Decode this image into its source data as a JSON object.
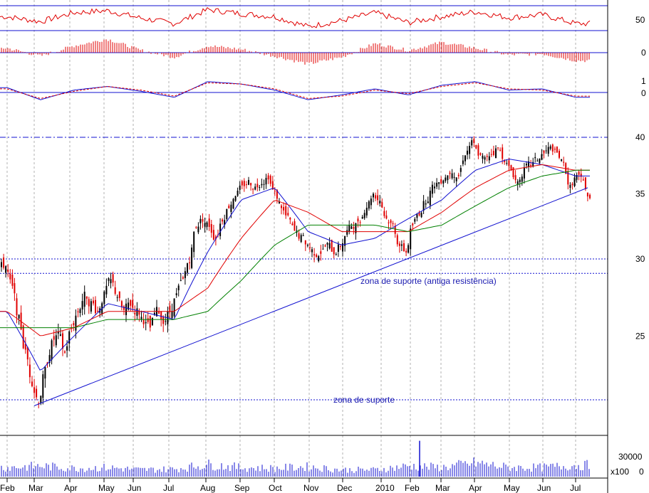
{
  "colors": {
    "background": "#ffffff",
    "up_candle": "#000000",
    "down_candle": "#e00000",
    "ma_fast": "#1010d0",
    "ma_mid": "#e00000",
    "ma_slow": "#008000",
    "guide_line": "#1010d0",
    "volume_bar": "#1010d0",
    "grid": "#b0b0b0"
  },
  "chart_data": [
    {
      "type": "line",
      "panel": "oscillator-1",
      "y_tick_labels": [
        "50"
      ],
      "reference_lines": [
        50
      ],
      "series": [
        {
          "color": "#e00000",
          "x": [
            "Feb",
            "Mar",
            "Apr",
            "May",
            "Jun",
            "Jul",
            "Aug",
            "Sep",
            "Oct",
            "Nov",
            "Dec",
            "2010",
            "Feb",
            "Mar",
            "Apr",
            "May",
            "Jun",
            "Jul"
          ],
          "values": [
            58,
            48,
            66,
            70,
            55,
            44,
            72,
            64,
            58,
            38,
            50,
            66,
            46,
            58,
            68,
            56,
            62,
            44
          ]
        }
      ]
    },
    {
      "type": "bar",
      "panel": "histogram",
      "y_tick_labels": [
        "0"
      ],
      "categories": [
        "Feb",
        "Mar",
        "Apr",
        "May",
        "Jun",
        "Jul",
        "Aug",
        "Sep",
        "Oct",
        "Nov",
        "Dec",
        "2010",
        "Feb",
        "Mar",
        "Apr",
        "May",
        "Jun",
        "Jul"
      ],
      "values": [
        4,
        -3,
        6,
        12,
        2,
        -4,
        6,
        3,
        -3,
        -10,
        -4,
        8,
        2,
        9,
        4,
        -2,
        -1,
        -7
      ]
    },
    {
      "type": "line",
      "panel": "oscillator-2",
      "y_tick_labels": [
        "1",
        "0"
      ],
      "reference_lines": [
        0
      ],
      "series": [
        {
          "color": "#1010d0",
          "values": [
            0.4,
            -0.6,
            0.2,
            0.5,
            0.1,
            -0.4,
            0.9,
            0.7,
            0.2,
            -0.6,
            -0.2,
            0.3,
            -0.2,
            0.6,
            0.9,
            0.2,
            0.3,
            -0.4
          ]
        },
        {
          "color": "#e00000",
          "values": [
            0.3,
            -0.5,
            0.1,
            0.5,
            0.2,
            -0.3,
            0.8,
            0.7,
            0.3,
            -0.5,
            -0.3,
            0.2,
            -0.1,
            0.5,
            0.8,
            0.3,
            0.2,
            -0.3
          ]
        }
      ]
    },
    {
      "type": "candlestick",
      "panel": "price",
      "ylim": [
        20,
        41
      ],
      "y_scale": "log",
      "y_tick_labels": [
        "40",
        "35",
        "30",
        "25"
      ],
      "x_tick_labels": [
        "Feb",
        "Mar",
        "Apr",
        "May",
        "Jun",
        "Jul",
        "Aug",
        "Sep",
        "Oct",
        "Nov",
        "Dec",
        "2010",
        "Feb",
        "Mar",
        "Apr",
        "May",
        "Jun",
        "Jul"
      ],
      "close": [
        [
          29.5,
          28.0,
          26.0,
          24.0,
          22.5
        ],
        [
          21.5,
          23.0,
          24.5,
          25.0,
          24.0
        ],
        [
          25.5,
          26.5,
          27.5,
          27.0,
          26.5
        ],
        [
          27.5,
          28.5,
          27.5,
          26.5,
          27.0
        ],
        [
          26.5,
          26.0,
          25.5,
          26.5,
          26.0
        ],
        [
          26.5,
          27.5,
          28.5,
          30.0,
          32.5
        ],
        [
          33.0,
          32.5,
          31.5,
          33.0,
          34.0
        ],
        [
          35.0,
          35.5,
          36.0,
          35.5,
          36.0
        ],
        [
          36.5,
          35.0,
          34.0,
          33.0,
          32.0
        ],
        [
          31.5,
          31.0,
          30.5,
          30.5,
          31.0
        ],
        [
          30.5,
          31.0,
          32.0,
          32.5,
          33.0
        ],
        [
          34.0,
          35.0,
          34.5,
          33.0,
          32.5
        ],
        [
          31.0,
          30.5,
          32.5,
          33.5,
          34.5
        ],
        [
          35.5,
          36.0,
          36.5,
          37.0,
          36.5
        ],
        [
          38.5,
          39.5,
          38.5,
          38.0,
          38.5
        ],
        [
          39.0,
          38.0,
          37.0,
          36.0,
          37.0
        ],
        [
          37.5,
          38.0,
          38.5,
          39.0,
          38.5
        ],
        [
          37.5,
          35.5,
          36.5,
          36.0,
          34.5
        ]
      ],
      "moving_averages": [
        {
          "color": "#1010d0",
          "values": [
            26.5,
            23.0,
            25.0,
            27.0,
            26.5,
            26.0,
            30.5,
            34.5,
            35.5,
            32.0,
            31.0,
            31.5,
            33.0,
            34.5,
            37.0,
            38.0,
            37.5,
            36.5
          ]
        },
        {
          "color": "#e00000",
          "values": [
            26.5,
            25.0,
            25.5,
            26.5,
            26.5,
            26.5,
            28.0,
            31.5,
            34.5,
            33.5,
            32.0,
            32.0,
            32.0,
            33.5,
            35.5,
            37.0,
            37.5,
            37.0
          ]
        },
        {
          "color": "#008000",
          "values": [
            25.5,
            25.5,
            25.5,
            26.0,
            26.0,
            26.0,
            26.5,
            28.5,
            31.0,
            32.5,
            32.5,
            32.5,
            32.0,
            32.5,
            34.0,
            35.5,
            36.5,
            37.0
          ]
        }
      ],
      "horizontal_levels": [
        {
          "value": 40,
          "style": "dash-dot"
        },
        {
          "value": 30,
          "style": "dotted"
        },
        {
          "value": 29,
          "style": "dotted"
        },
        {
          "value": 21.5,
          "style": "dotted"
        }
      ],
      "trendline": {
        "from": {
          "x": "Mar",
          "value": 21.2
        },
        "to": {
          "x": "Jul",
          "value": 35.5
        }
      },
      "annotations": [
        {
          "text": "zona de suporte (antiga resistência)",
          "near_value": 29
        },
        {
          "text": "zona de suporte",
          "near_value": 21.5
        }
      ]
    },
    {
      "type": "bar",
      "panel": "volume",
      "y_tick_labels": [
        "30000",
        "0"
      ],
      "y_unit_label": "x100",
      "categories": [
        "Feb",
        "Mar",
        "Apr",
        "May",
        "Jun",
        "Jul",
        "Aug",
        "Sep",
        "Oct",
        "Nov",
        "Dec",
        "2010",
        "Feb",
        "Mar",
        "Apr",
        "May",
        "Jun",
        "Jul"
      ],
      "values": [
        12000,
        14000,
        11000,
        12000,
        9000,
        10000,
        16000,
        12000,
        11000,
        13000,
        9000,
        9000,
        14000,
        12000,
        18000,
        12000,
        12000,
        15000
      ],
      "spike": {
        "x": "Feb",
        "year": "2010",
        "value": 45000
      }
    }
  ]
}
